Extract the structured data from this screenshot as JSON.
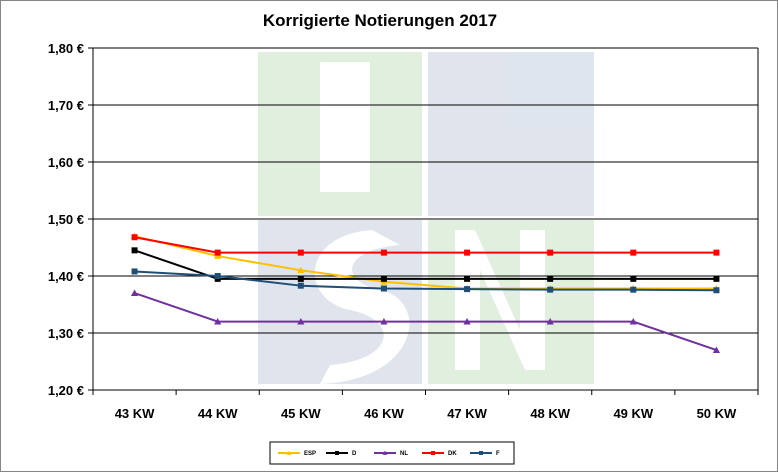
{
  "chart_data": {
    "type": "line",
    "title": "Korrigierte Notierungen 2017",
    "categories": [
      "43 KW",
      "44 KW",
      "45 KW",
      "46 KW",
      "47 KW",
      "48 KW",
      "49 KW",
      "50 KW"
    ],
    "y_ticks": [
      "1,20 €",
      "1,30 €",
      "1,40 €",
      "1,50 €",
      "1,60 €",
      "1,70 €",
      "1,80 €"
    ],
    "ylim": [
      1.2,
      1.8
    ],
    "grid": "horizontal",
    "legend_position": "bottom",
    "watermark": "ISN",
    "series": [
      {
        "name": "ESP",
        "color": "#FFC000",
        "marker": "triangle",
        "values": [
          1.47,
          1.435,
          1.41,
          1.39,
          1.378,
          1.378,
          1.378,
          1.378
        ]
      },
      {
        "name": "D",
        "color": "#000000",
        "marker": "square",
        "values": [
          1.445,
          1.395,
          1.395,
          1.395,
          1.395,
          1.395,
          1.395,
          1.395
        ]
      },
      {
        "name": "NL",
        "color": "#7030A0",
        "marker": "triangle",
        "values": [
          1.37,
          1.32,
          1.32,
          1.32,
          1.32,
          1.32,
          1.32,
          1.27
        ]
      },
      {
        "name": "DK",
        "color": "#FF0000",
        "marker": "square",
        "values": [
          1.468,
          1.441,
          1.441,
          1.441,
          1.441,
          1.441,
          1.441,
          1.441
        ]
      },
      {
        "name": "F",
        "color": "#1F4E79",
        "marker": "square",
        "values": [
          1.408,
          1.4,
          1.383,
          1.378,
          1.377,
          1.376,
          1.376,
          1.375
        ]
      }
    ]
  }
}
